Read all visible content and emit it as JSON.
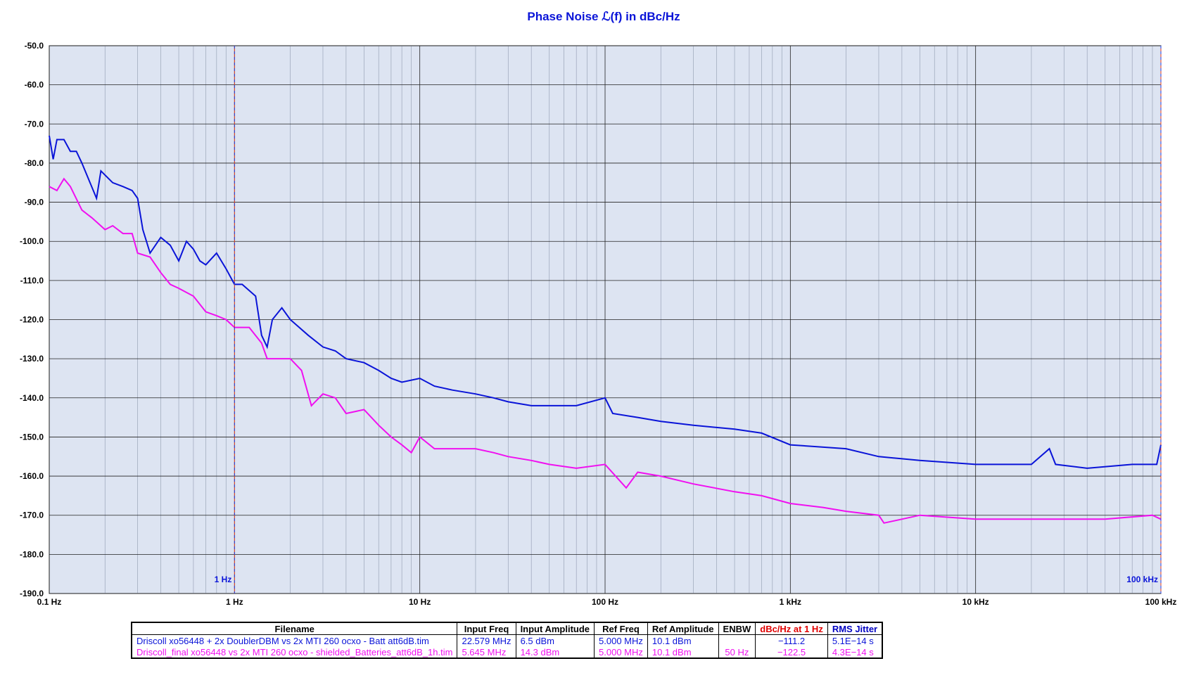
{
  "chart_data": {
    "type": "line",
    "title": "Phase Noise ℒ(f) in dBc/Hz",
    "log_x": true,
    "grid": true,
    "xlim": [
      0.1,
      100000
    ],
    "xticks": [
      {
        "value": 0.1,
        "label": "0.1 Hz"
      },
      {
        "value": 1,
        "label": "1 Hz"
      },
      {
        "value": 10,
        "label": "10 Hz"
      },
      {
        "value": 100,
        "label": "100 Hz"
      },
      {
        "value": 1000,
        "label": "1 kHz"
      },
      {
        "value": 10000,
        "label": "10 kHz"
      },
      {
        "value": 100000,
        "label": "100 kHz"
      }
    ],
    "ylim": [
      -190,
      -50
    ],
    "yticks": [
      {
        "value": -50,
        "label": "-50.0"
      },
      {
        "value": -60,
        "label": "-60.0"
      },
      {
        "value": -70,
        "label": "-70.0"
      },
      {
        "value": -80,
        "label": "-80.0"
      },
      {
        "value": -90,
        "label": "-90.0"
      },
      {
        "value": -100,
        "label": "-100.0"
      },
      {
        "value": -110,
        "label": "-110.0"
      },
      {
        "value": -120,
        "label": "-120.0"
      },
      {
        "value": -130,
        "label": "-130.0"
      },
      {
        "value": -140,
        "label": "-140.0"
      },
      {
        "value": -150,
        "label": "-150.0"
      },
      {
        "value": -160,
        "label": "-160.0"
      },
      {
        "value": -170,
        "label": "-170.0"
      },
      {
        "value": -180,
        "label": "-180.0"
      },
      {
        "value": -190,
        "label": "-190.0"
      }
    ],
    "markers": [
      {
        "x": 1,
        "label": "1 Hz"
      },
      {
        "x": 100000,
        "label": "100 kHz"
      }
    ],
    "series": [
      {
        "name": "Driscoll xo56448 + 2x DoublerDBM vs 2x MTI 260 ocxo - Batt att6dB.tim",
        "color": "#0a14d8",
        "x": [
          0.1,
          0.105,
          0.11,
          0.12,
          0.13,
          0.14,
          0.15,
          0.18,
          0.19,
          0.22,
          0.25,
          0.28,
          0.3,
          0.32,
          0.35,
          0.4,
          0.45,
          0.5,
          0.55,
          0.6,
          0.65,
          0.7,
          0.8,
          0.9,
          1,
          1.1,
          1.3,
          1.4,
          1.5,
          1.6,
          1.8,
          2,
          2.5,
          3,
          3.5,
          4,
          5,
          6,
          7,
          8,
          10,
          12,
          15,
          20,
          25,
          30,
          40,
          50,
          70,
          100,
          110,
          150,
          200,
          300,
          500,
          700,
          1000,
          2000,
          3000,
          5000,
          10000,
          20000,
          25000,
          27000,
          40000,
          70000,
          95000,
          100000
        ],
        "values": [
          -73,
          -79,
          -74,
          -74,
          -77,
          -77,
          -80,
          -89,
          -82,
          -85,
          -86,
          -87,
          -89,
          -97,
          -103,
          -99,
          -101,
          -105,
          -100,
          -102,
          -105,
          -106,
          -103,
          -107,
          -111,
          -111,
          -114,
          -124,
          -127,
          -120,
          -117,
          -120,
          -124,
          -127,
          -128,
          -130,
          -131,
          -133,
          -135,
          -136,
          -135,
          -137,
          -138,
          -139,
          -140,
          -141,
          -142,
          -142,
          -142,
          -140,
          -144,
          -145,
          -146,
          -147,
          -148,
          -149,
          -152,
          -153,
          -155,
          -156,
          -157,
          -157,
          -153,
          -157,
          -158,
          -157,
          -157,
          -152
        ]
      },
      {
        "name": "Driscoll_final xo56448 vs 2x MTI 260 ocxo - shielded_Batteries_att6dB_1h.tim",
        "color": "#f010f0",
        "x": [
          0.1,
          0.11,
          0.12,
          0.13,
          0.15,
          0.17,
          0.2,
          0.22,
          0.25,
          0.28,
          0.3,
          0.35,
          0.4,
          0.45,
          0.5,
          0.6,
          0.7,
          0.8,
          0.9,
          1,
          1.2,
          1.4,
          1.5,
          2,
          2.3,
          2.6,
          3,
          3.5,
          4,
          5,
          6,
          7,
          8,
          9,
          10,
          12,
          15,
          20,
          25,
          30,
          40,
          50,
          70,
          100,
          130,
          150,
          200,
          300,
          500,
          700,
          1000,
          1500,
          2000,
          3000,
          3200,
          5000,
          10000,
          20000,
          50000,
          90000,
          100000
        ],
        "values": [
          -86,
          -87,
          -84,
          -86,
          -92,
          -94,
          -97,
          -96,
          -98,
          -98,
          -103,
          -104,
          -108,
          -111,
          -112,
          -114,
          -118,
          -119,
          -120,
          -122,
          -122,
          -126,
          -130,
          -130,
          -133,
          -142,
          -139,
          -140,
          -144,
          -143,
          -147,
          -150,
          -152,
          -154,
          -150,
          -153,
          -153,
          -153,
          -154,
          -155,
          -156,
          -157,
          -158,
          -157,
          -163,
          -159,
          -160,
          -162,
          -164,
          -165,
          -167,
          -168,
          -169,
          -170,
          -172,
          -170,
          -171,
          -171,
          -171,
          -170,
          -171
        ]
      }
    ]
  },
  "table": {
    "header": [
      "Filename",
      "Input Freq",
      "Input Amplitude",
      "Ref Freq",
      "Ref Amplitude",
      "ENBW",
      "dBc/Hz at 1 Hz",
      "RMS Jitter"
    ],
    "rows": [
      [
        "Driscoll xo56448 + 2x DoublerDBM vs 2x MTI 260 ocxo - Batt att6dB.tim",
        "22.579 MHz",
        "6.5 dBm",
        "5.000 MHz",
        "10.1 dBm",
        null,
        "−111.2",
        "5.1E−14 s"
      ],
      [
        "Driscoll_final xo56448 vs 2x MTI 260 ocxo - shielded_Batteries_att6dB_1h.tim",
        "5.645 MHz",
        "14.3 dBm",
        "5.000 MHz",
        "10.1 dBm",
        "50 Hz",
        "−122.5",
        "4.3E−14 s"
      ]
    ]
  }
}
